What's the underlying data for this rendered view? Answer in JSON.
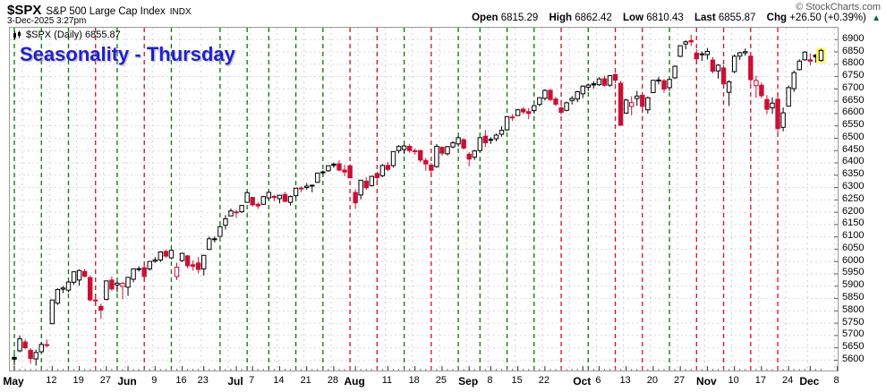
{
  "header": {
    "symbol": "$SPX",
    "name": "S&P 500 Large Cap Index",
    "exchange": "INDX",
    "datetime": "3-Dec-2025 3:27pm",
    "copyright": "© StockCharts.com",
    "quote": {
      "open_label": "Open",
      "open": "6815.29",
      "high_label": "High",
      "high": "6862.42",
      "low_label": "Low",
      "low": "6810.43",
      "last_label": "Last",
      "last": "6855.87",
      "chg_label": "Chg",
      "chg": "+26.50 (+0.39%)",
      "arrow": "▲"
    }
  },
  "legend": {
    "label": "$SPX (Daily) 6855.87"
  },
  "annotation": {
    "text": "Seasonality - Thursday",
    "color": "#1f1fd0"
  },
  "chart_data": {
    "type": "candlestick",
    "title": "Seasonality - Thursday",
    "symbol": "$SPX",
    "timeframe": "Daily",
    "last_price": 6855.87,
    "ylim": [
      5558,
      6948
    ],
    "y_ticks": [
      6900,
      6850,
      6800,
      6750,
      6700,
      6650,
      6600,
      6550,
      6500,
      6450,
      6400,
      6350,
      6300,
      6250,
      6200,
      6150,
      6100,
      6050,
      6000,
      5950,
      5900,
      5850,
      5800,
      5750,
      5700,
      5650,
      5600
    ],
    "x_labels": [
      {
        "t": "May",
        "i": 0,
        "b": 1
      },
      {
        "t": "12",
        "i": 7
      },
      {
        "t": "19",
        "i": 12
      },
      {
        "t": "27",
        "i": 17
      },
      {
        "t": "Jun",
        "i": 21,
        "b": 1
      },
      {
        "t": "9",
        "i": 26
      },
      {
        "t": "16",
        "i": 31
      },
      {
        "t": "23",
        "i": 35
      },
      {
        "t": "Jul",
        "i": 41,
        "b": 1
      },
      {
        "t": "7",
        "i": 44
      },
      {
        "t": "14",
        "i": 49
      },
      {
        "t": "21",
        "i": 54
      },
      {
        "t": "28",
        "i": 59
      },
      {
        "t": "Aug",
        "i": 63,
        "b": 1
      },
      {
        "t": "11",
        "i": 69
      },
      {
        "t": "18",
        "i": 74
      },
      {
        "t": "25",
        "i": 79
      },
      {
        "t": "Sep",
        "i": 84,
        "b": 1
      },
      {
        "t": "8",
        "i": 88
      },
      {
        "t": "15",
        "i": 93
      },
      {
        "t": "22",
        "i": 98
      },
      {
        "t": "Oct",
        "i": 105,
        "b": 1
      },
      {
        "t": "6",
        "i": 108
      },
      {
        "t": "13",
        "i": 113
      },
      {
        "t": "20",
        "i": 118
      },
      {
        "t": "27",
        "i": 123
      },
      {
        "t": "Nov",
        "i": 128,
        "b": 1
      },
      {
        "t": "10",
        "i": 133
      },
      {
        "t": "17",
        "i": 138
      },
      {
        "t": "24",
        "i": 143
      },
      {
        "t": "Dec",
        "i": 147,
        "b": 1
      },
      {
        "t": "8",
        "i": 152
      }
    ],
    "week_grid_indices": [
      1.5,
      6.5,
      11.5,
      16.5,
      20.5,
      25.5,
      30.5,
      34.5,
      39.5,
      43.5,
      48.5,
      53.5,
      58.5,
      63.5,
      68.5,
      73.5,
      78.5,
      83.5,
      87.5,
      92.5,
      97.5,
      102.5,
      107.5,
      112.5,
      117.5,
      122.5,
      127.5,
      132.5,
      137.5,
      142.5,
      146.5,
      151.5
    ],
    "thursday_lines": [
      [
        0,
        "g"
      ],
      [
        5,
        "g"
      ],
      [
        10,
        "g"
      ],
      [
        15,
        "r"
      ],
      [
        19,
        "g"
      ],
      [
        24,
        "r"
      ],
      [
        29,
        "g"
      ],
      [
        38,
        "g"
      ],
      [
        43,
        "g"
      ],
      [
        47,
        "g"
      ],
      [
        52,
        "g"
      ],
      [
        57,
        "g"
      ],
      [
        62,
        "r"
      ],
      [
        67,
        "r"
      ],
      [
        72,
        "g"
      ],
      [
        77,
        "r"
      ],
      [
        82,
        "g"
      ],
      [
        86,
        "g"
      ],
      [
        91,
        "g"
      ],
      [
        96,
        "g"
      ],
      [
        101,
        "r"
      ],
      [
        106,
        "g"
      ],
      [
        111,
        "r"
      ],
      [
        116,
        "r"
      ],
      [
        121,
        "g"
      ],
      [
        126,
        "r"
      ],
      [
        131,
        "r"
      ],
      [
        136,
        "r"
      ],
      [
        141,
        "r"
      ]
    ],
    "colors": {
      "up": "#000000",
      "down": "#cc0f35",
      "grid": "#d9d9d9",
      "week_grid": "#cfcfcf",
      "thu_green": "#007a00",
      "thu_red": "#cc1122",
      "highlight": "#ffff66",
      "frame": "#999999"
    },
    "highlight_last": true,
    "candles": [
      [
        "5/1",
        5611,
        5623,
        5578,
        5604.1
      ],
      [
        "5/2",
        5638,
        5700,
        5632,
        5686.7
      ],
      [
        "5/5",
        5674,
        5684,
        5645,
        5650.4
      ],
      [
        "5/6",
        5640,
        5649,
        5586,
        5606.9
      ],
      [
        "5/7",
        5605,
        5643,
        5578,
        5631.3
      ],
      [
        "5/8",
        5634,
        5672,
        5631,
        5663.9
      ],
      [
        "5/9",
        5663,
        5684,
        5652,
        5659.9
      ],
      [
        "5/12",
        5748,
        5845,
        5746,
        5844.2
      ],
      [
        "5/13",
        5831,
        5891,
        5824,
        5886.6
      ],
      [
        "5/14",
        5888,
        5901,
        5872,
        5892.6
      ],
      [
        "5/15",
        5884,
        5921,
        5875,
        5916.9
      ],
      [
        "5/16",
        5916,
        5959,
        5906,
        5958.4
      ],
      [
        "5/19",
        5925,
        5968,
        5902,
        5963.6
      ],
      [
        "5/20",
        5960,
        5970,
        5935,
        5940.5
      ],
      [
        "5/21",
        5935,
        5943,
        5838,
        5844.6
      ],
      [
        "5/22",
        5844,
        5863,
        5821,
        5842.0
      ],
      [
        "5/23",
        5818,
        5829,
        5767,
        5802.8
      ],
      [
        "5/27",
        5846,
        5922,
        5843,
        5921.5
      ],
      [
        "5/28",
        5925,
        5939,
        5882,
        5888.6
      ],
      [
        "5/29",
        5905,
        5920,
        5875,
        5912.2
      ],
      [
        "5/30",
        5899,
        5917,
        5847,
        5911.7
      ],
      [
        "6/2",
        5896,
        5937,
        5861,
        5935.9
      ],
      [
        "6/3",
        5928,
        5972,
        5916,
        5970.4
      ],
      [
        "6/4",
        5971,
        5981,
        5959,
        5970.8
      ],
      [
        "6/5",
        5975,
        5992,
        5921,
        5939.3
      ],
      [
        "6/6",
        5970,
        6002,
        5963,
        6000.4
      ],
      [
        "6/9",
        6001,
        6018,
        5995,
        6005.9
      ],
      [
        "6/10",
        6006,
        6042,
        5998,
        6038.8
      ],
      [
        "6/11",
        6041,
        6048,
        6015,
        6022.2
      ],
      [
        "6/12",
        6015,
        6046,
        6009,
        6045.3
      ],
      [
        "6/13",
        5939,
        5995,
        5925,
        5977.0
      ],
      [
        "6/16",
        6004,
        6036,
        5998,
        6033.1
      ],
      [
        "6/17",
        6023,
        6027,
        5973,
        5982.7
      ],
      [
        "6/18",
        5987,
        6004,
        5963,
        5980.9
      ],
      [
        "6/20",
        5994,
        6018,
        5952,
        5967.8
      ],
      [
        "6/23",
        5970,
        6027,
        5943,
        6025.2
      ],
      [
        "6/24",
        6049,
        6101,
        6047,
        6092.2
      ],
      [
        "6/25",
        6091,
        6102,
        6077,
        6092.2
      ],
      [
        "6/26",
        6102,
        6146,
        6101,
        6141.0
      ],
      [
        "6/27",
        6147,
        6188,
        6130,
        6173.1
      ],
      [
        "6/30",
        6185,
        6215,
        6184,
        6205.0
      ],
      [
        "7/1",
        6201,
        6210,
        6177,
        6198.0
      ],
      [
        "7/2",
        6202,
        6228,
        6197,
        6227.4
      ],
      [
        "7/3",
        6240,
        6284,
        6238,
        6279.4
      ],
      [
        "7/7",
        6260,
        6262,
        6223,
        6230.0
      ],
      [
        "7/8",
        6232,
        6242,
        6214,
        6225.5
      ],
      [
        "7/9",
        6232,
        6266,
        6230,
        6263.3
      ],
      [
        "7/10",
        6258,
        6284,
        6251,
        6280.5
      ],
      [
        "7/11",
        6264,
        6270,
        6245,
        6259.8
      ],
      [
        "7/14",
        6255,
        6271,
        6236,
        6268.6
      ],
      [
        "7/15",
        6272,
        6282,
        6241,
        6243.8
      ],
      [
        "7/16",
        6240,
        6268,
        6227,
        6263.7
      ],
      [
        "7/17",
        6267,
        6298,
        6260,
        6297.4
      ],
      [
        "7/18",
        6298,
        6305,
        6281,
        6296.8
      ],
      [
        "7/21",
        6300,
        6318,
        6291,
        6305.6
      ],
      [
        "7/22",
        6306,
        6310,
        6281,
        6309.6
      ],
      [
        "7/23",
        6321,
        6360,
        6319,
        6358.9
      ],
      [
        "7/24",
        6361,
        6369,
        6351,
        6363.4
      ],
      [
        "7/25",
        6368,
        6389,
        6364,
        6388.6
      ],
      [
        "7/28",
        6395,
        6401,
        6380,
        6389.8
      ],
      [
        "7/29",
        6396,
        6411,
        6366,
        6370.9
      ],
      [
        "7/30",
        6371,
        6393,
        6346,
        6362.9
      ],
      [
        "7/31",
        6388,
        6394,
        6342,
        6339.4
      ],
      [
        "8/1",
        6280,
        6293,
        6213,
        6238.0
      ],
      [
        "8/4",
        6270,
        6331,
        6252,
        6329.9
      ],
      [
        "8/5",
        6326,
        6341,
        6291,
        6299.2
      ],
      [
        "8/6",
        6308,
        6348,
        6304,
        6345.1
      ],
      [
        "8/7",
        6357,
        6364,
        6315,
        6340.0
      ],
      [
        "8/8",
        6348,
        6395,
        6342,
        6389.5
      ],
      [
        "8/11",
        6390,
        6404,
        6366,
        6373.5
      ],
      [
        "8/12",
        6389,
        6447,
        6381,
        6445.8
      ],
      [
        "8/13",
        6450,
        6472,
        6439,
        6466.6
      ],
      [
        "8/14",
        6454,
        6473,
        6436,
        6468.5
      ],
      [
        "8/15",
        6467,
        6477,
        6441,
        6449.8
      ],
      [
        "8/18",
        6447,
        6458,
        6433,
        6449.2
      ],
      [
        "8/19",
        6450,
        6453,
        6402,
        6411.4
      ],
      [
        "8/20",
        6410,
        6420,
        6368,
        6395.8
      ],
      [
        "8/21",
        6391,
        6399,
        6344,
        6370.2
      ],
      [
        "8/22",
        6385,
        6477,
        6380,
        6466.9
      ],
      [
        "8/25",
        6463,
        6467,
        6428,
        6439.3
      ],
      [
        "8/26",
        6437,
        6469,
        6430,
        6465.9
      ],
      [
        "8/27",
        6465,
        6488,
        6459,
        6481.4
      ],
      [
        "8/28",
        6477,
        6508,
        6466,
        6501.9
      ],
      [
        "8/29",
        6494,
        6499,
        6454,
        6460.3
      ],
      [
        "9/2",
        6435,
        6444,
        6386,
        6415.5
      ],
      [
        "9/3",
        6423,
        6453,
        6412,
        6448.3
      ],
      [
        "9/4",
        6450,
        6505,
        6445,
        6502.1
      ],
      [
        "9/5",
        6508,
        6533,
        6464,
        6481.5
      ],
      [
        "9/8",
        6492,
        6504,
        6477,
        6495.2
      ],
      [
        "9/9",
        6498,
        6519,
        6487,
        6512.6
      ],
      [
        "9/10",
        6516,
        6549,
        6506,
        6532.0
      ],
      [
        "9/11",
        6534,
        6590,
        6530,
        6587.5
      ],
      [
        "9/12",
        6586,
        6597,
        6570,
        6584.3
      ],
      [
        "9/15",
        6592,
        6619,
        6591,
        6615.3
      ],
      [
        "9/16",
        6618,
        6626,
        6597,
        6606.8
      ],
      [
        "9/17",
        6608,
        6622,
        6577,
        6600.4
      ],
      [
        "9/18",
        6612,
        6635,
        6601,
        6632.0
      ],
      [
        "9/19",
        6637,
        6666,
        6630,
        6664.4
      ],
      [
        "9/22",
        6662,
        6699,
        6653,
        6693.8
      ],
      [
        "9/23",
        6694,
        6700,
        6650,
        6656.9
      ],
      [
        "9/24",
        6659,
        6669,
        6630,
        6638.0
      ],
      [
        "9/25",
        6623,
        6640,
        6596,
        6604.7
      ],
      [
        "9/26",
        6613,
        6648,
        6609,
        6643.7
      ],
      [
        "9/29",
        6653,
        6671,
        6637,
        6661.2
      ],
      [
        "9/30",
        6659,
        6692,
        6646,
        6688.5
      ],
      [
        "10/1",
        6680,
        6715,
        6663,
        6711.2
      ],
      [
        "10/2",
        6707,
        6722,
        6691,
        6715.4
      ],
      [
        "10/3",
        6721,
        6731,
        6701,
        6715.8
      ],
      [
        "10/6",
        6717,
        6748,
        6712,
        6740.3
      ],
      [
        "10/7",
        6741,
        6754,
        6710,
        6714.6
      ],
      [
        "10/8",
        6715,
        6755,
        6708,
        6753.7
      ],
      [
        "10/9",
        6758,
        6764,
        6723,
        6735.1
      ],
      [
        "10/10",
        6723,
        6733,
        6550,
        6552.5
      ],
      [
        "10/13",
        6602,
        6660,
        6599,
        6654.7
      ],
      [
        "10/14",
        6629,
        6670,
        6593,
        6644.3
      ],
      [
        "10/15",
        6661,
        6692,
        6632,
        6671.1
      ],
      [
        "10/16",
        6674,
        6680,
        6608,
        6629.1
      ],
      [
        "10/17",
        6615,
        6669,
        6600,
        6664.0
      ],
      [
        "10/20",
        6685,
        6736,
        6683,
        6735.1
      ],
      [
        "10/21",
        6736,
        6749,
        6718,
        6735.4
      ],
      [
        "10/22",
        6733,
        6740,
        6684,
        6699.4
      ],
      [
        "10/23",
        6705,
        6742,
        6692,
        6738.4
      ],
      [
        "10/24",
        6745,
        6795,
        6740,
        6791.7
      ],
      [
        "10/27",
        6832,
        6877,
        6829,
        6875.2
      ],
      [
        "10/28",
        6882,
        6897,
        6861,
        6890.9
      ],
      [
        "10/29",
        6896,
        6920,
        6874,
        6890.6
      ],
      [
        "10/30",
        6845,
        6861,
        6802,
        6822.3
      ],
      [
        "10/31",
        6842,
        6852,
        6813,
        6840.2
      ],
      [
        "11/3",
        6839,
        6866,
        6819,
        6852.0
      ],
      [
        "11/4",
        6817,
        6829,
        6763,
        6771.6
      ],
      [
        "11/5",
        6773,
        6800,
        6742,
        6796.3
      ],
      [
        "11/6",
        6785,
        6796,
        6705,
        6720.3
      ],
      [
        "11/7",
        6686,
        6735,
        6631,
        6728.8
      ],
      [
        "11/10",
        6770,
        6840,
        6764,
        6832.4
      ],
      [
        "11/11",
        6833,
        6850,
        6817,
        6846.6
      ],
      [
        "11/12",
        6846,
        6864,
        6834,
        6850.9
      ],
      [
        "11/13",
        6833,
        6838,
        6721,
        6737.5
      ],
      [
        "11/14",
        6713,
        6754,
        6664,
        6734.1
      ],
      [
        "11/17",
        6715,
        6726,
        6662,
        6672.4
      ],
      [
        "11/18",
        6657,
        6675,
        6598,
        6617.3
      ],
      [
        "11/19",
        6623,
        6666,
        6599,
        6642.2
      ],
      [
        "11/20",
        6658,
        6679,
        6522,
        6538.8
      ],
      [
        "11/21",
        6544,
        6625,
        6528,
        6603.0
      ],
      [
        "11/24",
        6630,
        6713,
        6629,
        6705.1
      ],
      [
        "11/25",
        6701,
        6774,
        6688,
        6765.9
      ],
      [
        "11/26",
        6778,
        6820,
        6775,
        6812.6
      ],
      [
        "11/28",
        6818,
        6853,
        6814,
        6849.1
      ],
      [
        "12/1",
        6818,
        6844,
        6796,
        6812.6
      ],
      [
        "12/2",
        6837,
        6841,
        6806,
        6829.4
      ],
      [
        "12/3",
        6815.29,
        6862.42,
        6810.43,
        6855.87
      ]
    ]
  }
}
